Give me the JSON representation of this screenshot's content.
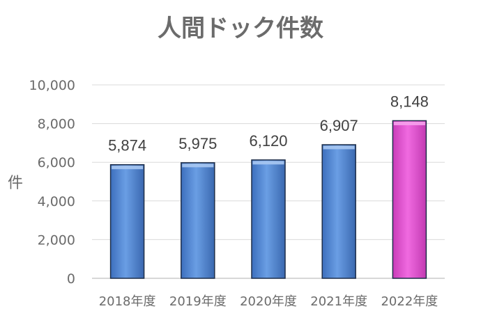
{
  "chart_data": {
    "type": "bar",
    "title": "人間ドック件数",
    "ylabel": "件",
    "xlabel": "",
    "categories": [
      "2018年度",
      "2019年度",
      "2020年度",
      "2021年度",
      "2022年度"
    ],
    "values": [
      5874,
      5975,
      6120,
      6907,
      8148
    ],
    "value_labels": [
      "5,874",
      "5,975",
      "6,120",
      "6,907",
      "8,148"
    ],
    "ylim": [
      0,
      10000
    ],
    "yticks": [
      0,
      2000,
      4000,
      6000,
      8000,
      10000
    ],
    "ytick_labels": [
      "0",
      "2,000",
      "4,000",
      "6,000",
      "8,000",
      "10,000"
    ],
    "grid": true,
    "legend": "none",
    "colors": {
      "bar": "#5b8ed6",
      "bar_highlight": "#e858d4",
      "bar_edge": "#1f2f4a",
      "grid": "#d9d9d9",
      "text": "#6b6b6b"
    },
    "highlight_index": 4
  }
}
